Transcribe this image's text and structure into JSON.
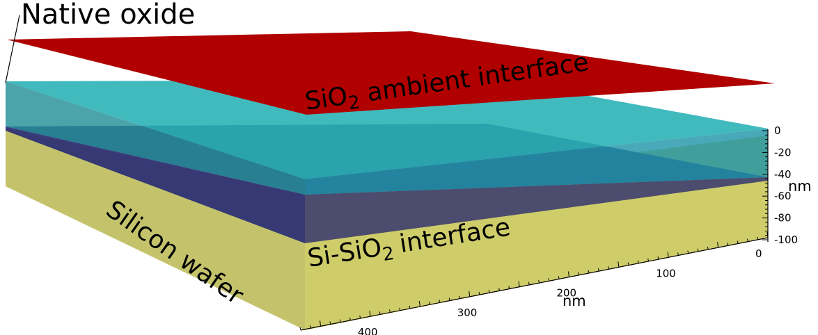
{
  "labels": {
    "native_oxide": "Native oxide",
    "sio2_prefix": "SiO",
    "sio2_sub": "2",
    "sio2_suffix": "ambient interface",
    "si_sio2_prefix": "Si-SiO",
    "si_sio2_sub": "2",
    "si_sio2_suffix": "interface",
    "silicon_wafer": "Silicon wafer"
  },
  "axes": {
    "z": {
      "unit": "nm",
      "ticks": [
        "0",
        "-20",
        "-40",
        "-60",
        "-80",
        "-100"
      ]
    },
    "x": {
      "unit": "nm",
      "ticks": [
        "0",
        "100",
        "200",
        "300",
        "400"
      ]
    }
  },
  "colors": {
    "silicon": "#cfcd6a",
    "oxide": "#22b8bc",
    "si_sio2_interface": "#3a3a7c",
    "ambient_interface": "#b00000"
  }
}
